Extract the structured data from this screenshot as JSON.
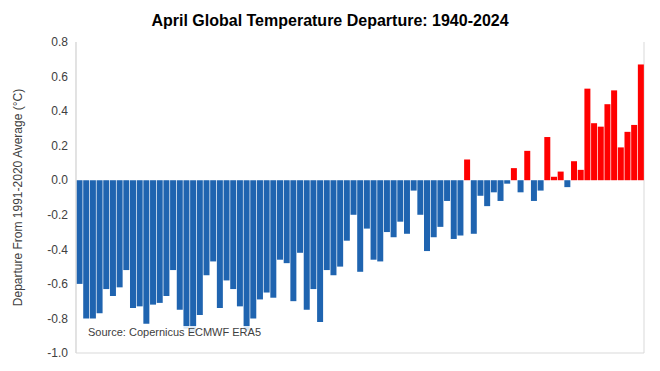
{
  "chart_data": {
    "type": "bar",
    "title": "April Global Temperature Departure: 1940-2024",
    "y_label": "Departure From 1991-2020 Average (°C)",
    "annotations": [
      "Source: Copernicus ECMWF ERA5"
    ],
    "categories": [
      null,
      null,
      null,
      null,
      null,
      null,
      null,
      null,
      null,
      null,
      null,
      null,
      null,
      null,
      null,
      null,
      null,
      null,
      null,
      null,
      null,
      null,
      null,
      null,
      null,
      null,
      null,
      null,
      null,
      null,
      null,
      null,
      null,
      null,
      null,
      null,
      null,
      null,
      null,
      null,
      null,
      null,
      null,
      null,
      null,
      null,
      null,
      null,
      null,
      null,
      null,
      null,
      null,
      null,
      null,
      null,
      null,
      null,
      null,
      null,
      null,
      null,
      null,
      null,
      null,
      null,
      null,
      null,
      null,
      null,
      null,
      null,
      null,
      null,
      null,
      null,
      null,
      null,
      null,
      null,
      null,
      null,
      null,
      null,
      null
    ],
    "values": [
      -0.6,
      -0.8,
      -0.8,
      -0.77,
      -0.63,
      -0.67,
      -0.62,
      -0.52,
      -0.74,
      -0.73,
      -0.83,
      -0.72,
      -0.71,
      -0.67,
      -0.52,
      -0.75,
      -0.86,
      -0.88,
      -0.78,
      -0.55,
      -0.47,
      -0.74,
      -0.58,
      -0.63,
      -0.73,
      -0.87,
      -0.8,
      -0.69,
      -0.65,
      -0.68,
      -0.46,
      -0.48,
      -0.7,
      -0.42,
      -0.75,
      -0.63,
      -0.82,
      -0.52,
      -0.55,
      -0.5,
      -0.35,
      -0.2,
      -0.53,
      -0.28,
      -0.46,
      -0.47,
      -0.3,
      -0.33,
      -0.24,
      -0.31,
      -0.06,
      -0.2,
      -0.41,
      -0.33,
      -0.27,
      -0.12,
      -0.34,
      -0.32,
      0.12,
      -0.31,
      -0.09,
      -0.15,
      -0.07,
      -0.12,
      -0.02,
      0.07,
      -0.07,
      0.17,
      -0.12,
      -0.06,
      0.25,
      0.02,
      0.05,
      -0.04,
      0.11,
      0.06,
      0.53,
      0.33,
      0.31,
      0.44,
      0.52,
      0.19,
      0.28,
      0.32,
      0.67
    ],
    "colors": [
      "#1f64b0",
      "#1f64b0",
      "#1f64b0",
      "#1f64b0",
      "#1f64b0",
      "#1f64b0",
      "#1f64b0",
      "#1f64b0",
      "#1f64b0",
      "#1f64b0",
      "#1f64b0",
      "#1f64b0",
      "#1f64b0",
      "#1f64b0",
      "#1f64b0",
      "#1f64b0",
      "#1f64b0",
      "#1f64b0",
      "#1f64b0",
      "#1f64b0",
      "#1f64b0",
      "#1f64b0",
      "#1f64b0",
      "#1f64b0",
      "#1f64b0",
      "#1f64b0",
      "#1f64b0",
      "#1f64b0",
      "#1f64b0",
      "#1f64b0",
      "#1f64b0",
      "#1f64b0",
      "#1f64b0",
      "#1f64b0",
      "#1f64b0",
      "#1f64b0",
      "#1f64b0",
      "#1f64b0",
      "#1f64b0",
      "#1f64b0",
      "#1f64b0",
      "#1f64b0",
      "#1f64b0",
      "#1f64b0",
      "#1f64b0",
      "#1f64b0",
      "#1f64b0",
      "#1f64b0",
      "#1f64b0",
      "#1f64b0",
      "#1f64b0",
      "#1f64b0",
      "#1f64b0",
      "#1f64b0",
      "#1f64b0",
      "#1f64b0",
      "#1f64b0",
      "#1f64b0",
      "#ff0000",
      "#1f64b0",
      "#1f64b0",
      "#1f64b0",
      "#1f64b0",
      "#1f64b0",
      "#1f64b0",
      "#ff0000",
      "#1f64b0",
      "#ff0000",
      "#1f64b0",
      "#1f64b0",
      "#ff0000",
      "#ff0000",
      "#ff0000",
      "#1f64b0",
      "#ff0000",
      "#ff0000",
      "#ff0000",
      "#ff0000",
      "#ff0000",
      "#ff0000",
      "#ff0000",
      "#ff0000",
      "#ff0000",
      "#ff0000",
      "#ff0000"
    ],
    "ylim": [
      -1,
      0.8
    ],
    "yticks": [
      {
        "value": -1,
        "label": "-1.0"
      },
      -0.8,
      -0.6,
      -0.4,
      -0.2,
      {
        "value": 0,
        "label": "0.0"
      },
      0.2,
      0.4,
      0.6,
      0.8
    ],
    "grid": true,
    "tick_labels": "y"
  }
}
